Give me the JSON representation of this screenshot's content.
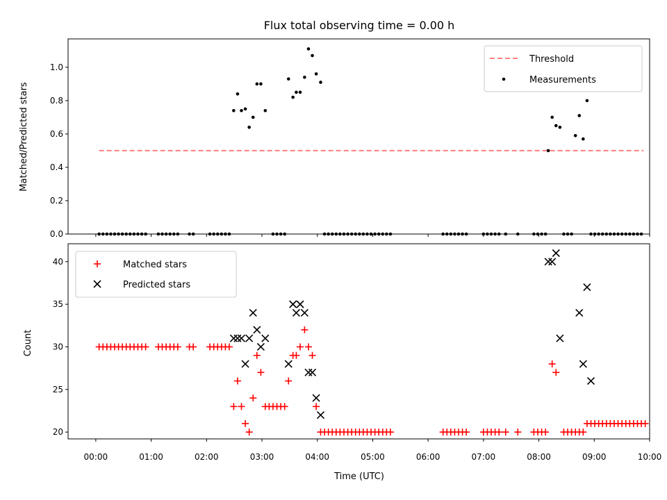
{
  "chart_data": [
    {
      "type": "scatter",
      "title": "Flux total observing time = 0.00 h",
      "xlabel": "",
      "ylabel": "Matched/Predicted stars",
      "xlim": [
        -0.5,
        10.0
      ],
      "ylim": [
        0,
        1.17
      ],
      "y_ticks": [
        "0.0",
        "0.2",
        "0.4",
        "0.6",
        "0.8",
        "1.0"
      ],
      "legend_position": "top-right",
      "threshold": {
        "name": "Threshold",
        "y": 0.5,
        "x_range": [
          0.06,
          9.89
        ],
        "color": "#ff7f7f"
      },
      "series": [
        {
          "name": "Measurements",
          "color": "#000000",
          "points": [
            [
              0.06,
              0
            ],
            [
              0.13,
              0
            ],
            [
              0.2,
              0
            ],
            [
              0.27,
              0
            ],
            [
              0.34,
              0
            ],
            [
              0.41,
              0
            ],
            [
              0.48,
              0
            ],
            [
              0.55,
              0
            ],
            [
              0.62,
              0
            ],
            [
              0.69,
              0
            ],
            [
              0.76,
              0
            ],
            [
              0.83,
              0
            ],
            [
              0.9,
              0
            ],
            [
              1.13,
              0
            ],
            [
              1.2,
              0
            ],
            [
              1.27,
              0
            ],
            [
              1.34,
              0
            ],
            [
              1.41,
              0
            ],
            [
              1.48,
              0
            ],
            [
              1.69,
              0
            ],
            [
              1.76,
              0
            ],
            [
              2.06,
              0
            ],
            [
              2.13,
              0
            ],
            [
              2.2,
              0
            ],
            [
              2.27,
              0
            ],
            [
              2.34,
              0
            ],
            [
              2.41,
              0
            ],
            [
              2.49,
              0.74
            ],
            [
              2.56,
              0.84
            ],
            [
              2.63,
              0.74
            ],
            [
              2.7,
              0.75
            ],
            [
              2.77,
              0.64
            ],
            [
              2.84,
              0.7
            ],
            [
              2.91,
              0.9
            ],
            [
              2.98,
              0.9
            ],
            [
              3.06,
              0.74
            ],
            [
              3.2,
              0
            ],
            [
              3.27,
              0
            ],
            [
              3.34,
              0
            ],
            [
              3.41,
              0
            ],
            [
              3.48,
              0.93
            ],
            [
              3.56,
              0.82
            ],
            [
              3.62,
              0.85
            ],
            [
              3.69,
              0.85
            ],
            [
              3.77,
              0.94
            ],
            [
              3.84,
              1.11
            ],
            [
              3.91,
              1.07
            ],
            [
              3.98,
              0.96
            ],
            [
              4.06,
              0.91
            ],
            [
              4.13,
              0
            ],
            [
              4.2,
              0
            ],
            [
              4.27,
              0
            ],
            [
              4.34,
              0
            ],
            [
              4.41,
              0
            ],
            [
              4.48,
              0
            ],
            [
              4.55,
              0
            ],
            [
              4.62,
              0
            ],
            [
              4.69,
              0
            ],
            [
              4.76,
              0
            ],
            [
              4.83,
              0
            ],
            [
              4.9,
              0
            ],
            [
              4.97,
              0
            ],
            [
              5.04,
              0
            ],
            [
              5.11,
              0
            ],
            [
              5.18,
              0
            ],
            [
              5.25,
              0
            ],
            [
              5.32,
              0
            ],
            [
              6.27,
              0
            ],
            [
              6.34,
              0
            ],
            [
              6.41,
              0
            ],
            [
              6.48,
              0
            ],
            [
              6.55,
              0
            ],
            [
              6.62,
              0
            ],
            [
              6.69,
              0
            ],
            [
              7.0,
              0
            ],
            [
              7.07,
              0
            ],
            [
              7.14,
              0
            ],
            [
              7.21,
              0
            ],
            [
              7.28,
              0
            ],
            [
              7.4,
              0
            ],
            [
              7.62,
              0
            ],
            [
              7.91,
              0
            ],
            [
              7.98,
              0
            ],
            [
              8.05,
              0
            ],
            [
              8.12,
              0
            ],
            [
              8.17,
              0.5
            ],
            [
              8.24,
              0.7
            ],
            [
              8.31,
              0.65
            ],
            [
              8.38,
              0.64
            ],
            [
              8.45,
              0
            ],
            [
              8.52,
              0
            ],
            [
              8.59,
              0
            ],
            [
              8.66,
              0.59
            ],
            [
              8.73,
              0.71
            ],
            [
              8.8,
              0.57
            ],
            [
              8.87,
              0.8
            ],
            [
              8.94,
              0
            ],
            [
              9.01,
              0
            ],
            [
              9.08,
              0
            ],
            [
              9.15,
              0
            ],
            [
              9.22,
              0
            ],
            [
              9.29,
              0
            ],
            [
              9.36,
              0
            ],
            [
              9.43,
              0
            ],
            [
              9.5,
              0
            ],
            [
              9.57,
              0
            ],
            [
              9.64,
              0
            ],
            [
              9.71,
              0
            ],
            [
              9.78,
              0
            ],
            [
              9.85,
              0
            ]
          ]
        }
      ]
    },
    {
      "type": "scatter",
      "title": "",
      "xlabel": "Time (UTC)",
      "ylabel": "Count",
      "xlim": [
        -0.5,
        10.0
      ],
      "ylim": [
        19.2,
        42.1
      ],
      "x_ticks": [
        "00:00",
        "01:00",
        "02:00",
        "03:00",
        "04:00",
        "05:00",
        "06:00",
        "07:00",
        "08:00",
        "09:00",
        "10:00"
      ],
      "y_ticks": [
        "20",
        "25",
        "30",
        "35",
        "40"
      ],
      "legend_position": "top-left",
      "series": [
        {
          "name": "Matched stars",
          "color": "#ff0000",
          "marker": "+",
          "points": [
            [
              0.06,
              30
            ],
            [
              0.13,
              30
            ],
            [
              0.2,
              30
            ],
            [
              0.27,
              30
            ],
            [
              0.34,
              30
            ],
            [
              0.41,
              30
            ],
            [
              0.48,
              30
            ],
            [
              0.55,
              30
            ],
            [
              0.62,
              30
            ],
            [
              0.69,
              30
            ],
            [
              0.76,
              30
            ],
            [
              0.83,
              30
            ],
            [
              0.9,
              30
            ],
            [
              1.13,
              30
            ],
            [
              1.2,
              30
            ],
            [
              1.27,
              30
            ],
            [
              1.34,
              30
            ],
            [
              1.41,
              30
            ],
            [
              1.48,
              30
            ],
            [
              1.69,
              30
            ],
            [
              1.76,
              30
            ],
            [
              2.06,
              30
            ],
            [
              2.13,
              30
            ],
            [
              2.2,
              30
            ],
            [
              2.27,
              30
            ],
            [
              2.34,
              30
            ],
            [
              2.41,
              30
            ],
            [
              2.49,
              23
            ],
            [
              2.56,
              26
            ],
            [
              2.63,
              23
            ],
            [
              2.7,
              21
            ],
            [
              2.77,
              20
            ],
            [
              2.84,
              24
            ],
            [
              2.91,
              29
            ],
            [
              2.98,
              27
            ],
            [
              3.06,
              23
            ],
            [
              3.13,
              23
            ],
            [
              3.2,
              23
            ],
            [
              3.27,
              23
            ],
            [
              3.34,
              23
            ],
            [
              3.41,
              23
            ],
            [
              3.48,
              26
            ],
            [
              3.56,
              29
            ],
            [
              3.62,
              29
            ],
            [
              3.69,
              30
            ],
            [
              3.77,
              32
            ],
            [
              3.84,
              30
            ],
            [
              3.91,
              29
            ],
            [
              3.98,
              23
            ],
            [
              4.06,
              20
            ],
            [
              4.13,
              20
            ],
            [
              4.2,
              20
            ],
            [
              4.27,
              20
            ],
            [
              4.34,
              20
            ],
            [
              4.41,
              20
            ],
            [
              4.48,
              20
            ],
            [
              4.55,
              20
            ],
            [
              4.62,
              20
            ],
            [
              4.69,
              20
            ],
            [
              4.76,
              20
            ],
            [
              4.83,
              20
            ],
            [
              4.9,
              20
            ],
            [
              4.97,
              20
            ],
            [
              5.04,
              20
            ],
            [
              5.11,
              20
            ],
            [
              5.18,
              20
            ],
            [
              5.25,
              20
            ],
            [
              5.32,
              20
            ],
            [
              6.27,
              20
            ],
            [
              6.34,
              20
            ],
            [
              6.41,
              20
            ],
            [
              6.48,
              20
            ],
            [
              6.55,
              20
            ],
            [
              6.62,
              20
            ],
            [
              6.69,
              20
            ],
            [
              7.0,
              20
            ],
            [
              7.07,
              20
            ],
            [
              7.14,
              20
            ],
            [
              7.21,
              20
            ],
            [
              7.28,
              20
            ],
            [
              7.4,
              20
            ],
            [
              7.62,
              20
            ],
            [
              7.91,
              20
            ],
            [
              7.98,
              20
            ],
            [
              8.05,
              20
            ],
            [
              8.12,
              20
            ],
            [
              8.24,
              28
            ],
            [
              8.31,
              27
            ],
            [
              8.45,
              20
            ],
            [
              8.52,
              20
            ],
            [
              8.59,
              20
            ],
            [
              8.66,
              20
            ],
            [
              8.73,
              20
            ],
            [
              8.8,
              20
            ],
            [
              8.87,
              21
            ],
            [
              8.94,
              21
            ],
            [
              9.01,
              21
            ],
            [
              9.08,
              21
            ],
            [
              9.15,
              21
            ],
            [
              9.22,
              21
            ],
            [
              9.29,
              21
            ],
            [
              9.36,
              21
            ],
            [
              9.43,
              21
            ],
            [
              9.5,
              21
            ],
            [
              9.57,
              21
            ],
            [
              9.64,
              21
            ],
            [
              9.71,
              21
            ],
            [
              9.78,
              21
            ],
            [
              9.85,
              21
            ],
            [
              9.92,
              21
            ]
          ]
        },
        {
          "name": "Predicted stars",
          "color": "#000000",
          "marker": "x",
          "points": [
            [
              2.49,
              31
            ],
            [
              2.56,
              31
            ],
            [
              2.63,
              31
            ],
            [
              2.7,
              28
            ],
            [
              2.77,
              31
            ],
            [
              2.84,
              34
            ],
            [
              2.91,
              32
            ],
            [
              2.98,
              30
            ],
            [
              3.06,
              31
            ],
            [
              3.48,
              28
            ],
            [
              3.56,
              35
            ],
            [
              3.62,
              34
            ],
            [
              3.69,
              35
            ],
            [
              3.77,
              34
            ],
            [
              3.84,
              27
            ],
            [
              3.91,
              27
            ],
            [
              3.98,
              24
            ],
            [
              4.06,
              22
            ],
            [
              8.17,
              40
            ],
            [
              8.24,
              40
            ],
            [
              8.31,
              41
            ],
            [
              8.38,
              31
            ],
            [
              8.73,
              34
            ],
            [
              8.8,
              28
            ],
            [
              8.87,
              37
            ],
            [
              8.94,
              26
            ]
          ]
        }
      ]
    }
  ]
}
